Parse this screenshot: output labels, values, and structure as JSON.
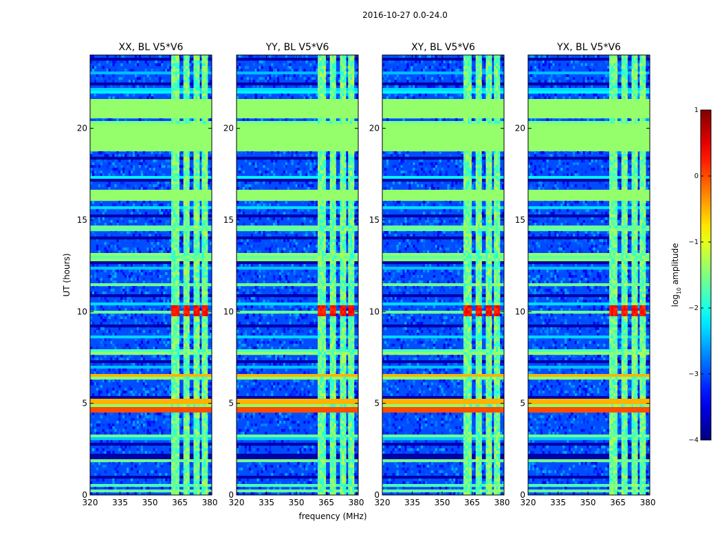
{
  "figure_title": "2016-10-27 0.0-24.0",
  "xlabel": "frequency (MHz)",
  "ylabel": "UT (hours)",
  "colorbar": {
    "label_prefix": "log",
    "label_sub": "10",
    "label_suffix": " amplitude",
    "range": [
      -4,
      1
    ],
    "ticks": [
      1,
      0,
      -1,
      -2,
      -3,
      -4
    ],
    "tick_labels": [
      "1",
      "0",
      "−1",
      "−2",
      "−3",
      "−4"
    ],
    "colormap": "jet"
  },
  "chart_data": {
    "type": "heatmap",
    "title": "2016-10-27 0.0-24.0",
    "xlabel": "frequency (MHz)",
    "ylabel": "UT (hours)",
    "xlim": [
      320,
      381
    ],
    "ylim": [
      0,
      24
    ],
    "xticks": [
      320,
      335,
      350,
      365,
      380
    ],
    "xtick_labels": [
      "320",
      "335",
      "350",
      "365",
      "380"
    ],
    "yticks": [
      0,
      5,
      10,
      15,
      20
    ],
    "ytick_labels": [
      "0",
      "5",
      "10",
      "15",
      "20"
    ],
    "value_label": "log10 amplitude",
    "value_range": [
      -4,
      1
    ],
    "panels": [
      {
        "title": "XX, BL V5*V6",
        "polarization": "XX"
      },
      {
        "title": "YY, BL V5*V6",
        "polarization": "YY"
      },
      {
        "title": "XY, BL V5*V6",
        "polarization": "XY"
      },
      {
        "title": "YX, BL V5*V6",
        "polarization": "YX"
      }
    ],
    "background_level": -3.0,
    "flagged_hour_bands": [
      {
        "start": 16.0,
        "end": 16.6,
        "level": -1.4
      },
      {
        "start": 18.7,
        "end": 20.3,
        "level": -1.4
      },
      {
        "start": 20.6,
        "end": 21.6,
        "level": -1.4
      }
    ],
    "rfi_freq_bands_mhz": [
      {
        "start": 361.0,
        "end": 365.0
      },
      {
        "start": 366.5,
        "end": 370.0
      },
      {
        "start": 372.0,
        "end": 375.0
      },
      {
        "start": 376.0,
        "end": 379.0
      }
    ],
    "rfi_band_level": -1.6,
    "strong_rfi_peak": {
      "hour_start": 9.7,
      "hour_end": 10.3,
      "level": 0.3
    },
    "strong_broadband_hours": [
      {
        "start": 4.5,
        "end": 4.8,
        "level": 0.0
      },
      {
        "start": 5.0,
        "end": 5.2,
        "level": -0.5
      },
      {
        "start": 6.4,
        "end": 6.6,
        "level": -0.5
      }
    ]
  }
}
